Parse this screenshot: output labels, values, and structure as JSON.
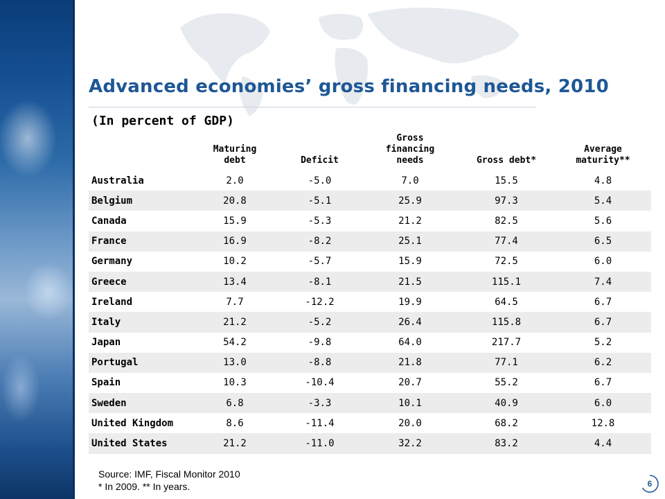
{
  "slide": {
    "title": "Advanced economies’ gross financing needs, 2010",
    "subtitle": "(In percent of GDP)",
    "page_number": "6",
    "accent_color": "#1e5796"
  },
  "table": {
    "headers": [
      "",
      "Maturing\ndebt",
      "Deficit",
      "Gross\nfinancing\nneeds",
      "Gross debt*",
      "Average\nmaturity**"
    ],
    "rows": [
      [
        "Australia",
        "2.0",
        "-5.0",
        "7.0",
        "15.5",
        "4.8"
      ],
      [
        "Belgium",
        "20.8",
        "-5.1",
        "25.9",
        "97.3",
        "5.4"
      ],
      [
        "Canada",
        "15.9",
        "-5.3",
        "21.2",
        "82.5",
        "5.6"
      ],
      [
        "France",
        "16.9",
        "-8.2",
        "25.1",
        "77.4",
        "6.5"
      ],
      [
        "Germany",
        "10.2",
        "-5.7",
        "15.9",
        "72.5",
        "6.0"
      ],
      [
        "Greece",
        "13.4",
        "-8.1",
        "21.5",
        "115.1",
        "7.4"
      ],
      [
        "Ireland",
        "7.7",
        "-12.2",
        "19.9",
        "64.5",
        "6.7"
      ],
      [
        "Italy",
        "21.2",
        "-5.2",
        "26.4",
        "115.8",
        "6.7"
      ],
      [
        "Japan",
        "54.2",
        "-9.8",
        "64.0",
        "217.7",
        "5.2"
      ],
      [
        "Portugal",
        "13.0",
        "-8.8",
        "21.8",
        "77.1",
        "6.2"
      ],
      [
        "Spain",
        "10.3",
        "-10.4",
        "20.7",
        "55.2",
        "6.7"
      ],
      [
        "Sweden",
        "6.8",
        "-3.3",
        "10.1",
        "40.9",
        "6.0"
      ],
      [
        "United Kingdom",
        "8.6",
        "-11.4",
        "20.0",
        "68.2",
        "12.8"
      ],
      [
        "United States",
        "21.2",
        "-11.0",
        "32.2",
        "83.2",
        "4.4"
      ]
    ]
  },
  "footer": {
    "source": "Source: IMF, Fiscal Monitor 2010",
    "notes": "* In 2009. ** In years."
  }
}
